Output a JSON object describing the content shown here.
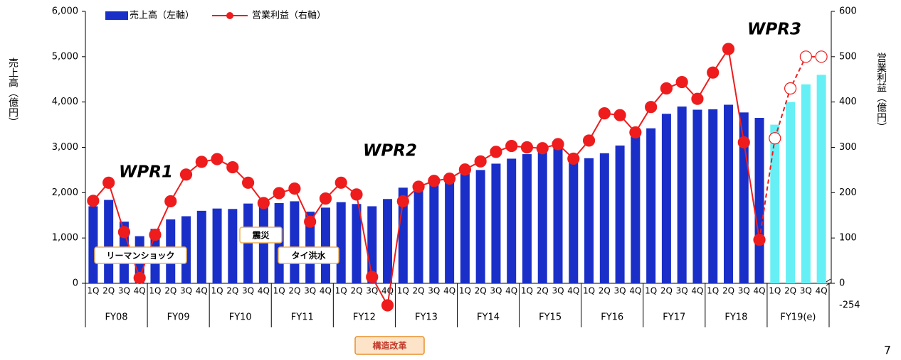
{
  "chart_data": {
    "type": "bar-line",
    "categories": [
      "1Q",
      "2Q",
      "3Q",
      "4Q",
      "1Q",
      "2Q",
      "3Q",
      "4Q",
      "1Q",
      "2Q",
      "3Q",
      "4Q",
      "1Q",
      "2Q",
      "3Q",
      "4Q",
      "1Q",
      "2Q",
      "3Q",
      "4Q",
      "1Q",
      "2Q",
      "3Q",
      "4Q",
      "1Q",
      "2Q",
      "3Q",
      "4Q",
      "1Q",
      "2Q",
      "3Q",
      "4Q",
      "1Q",
      "2Q",
      "3Q",
      "4Q",
      "1Q",
      "2Q",
      "3Q",
      "4Q",
      "1Q",
      "2Q",
      "3Q",
      "4Q",
      "1Q",
      "2Q",
      "3Q",
      "4Q"
    ],
    "groups": [
      "FY08",
      "FY09",
      "FY10",
      "FY11",
      "FY12",
      "FY13",
      "FY14",
      "FY15",
      "FY16",
      "FY17",
      "FY18",
      "FY19(e)"
    ],
    "series": [
      {
        "name": "売上高（左軸）",
        "color": "#1a2fc8",
        "values": [
          1700,
          1840,
          1360,
          1040,
          1200,
          1410,
          1480,
          1600,
          1650,
          1640,
          1760,
          1760,
          1770,
          1810,
          1580,
          1670,
          1790,
          1750,
          1700,
          1860,
          2110,
          2140,
          2210,
          2270,
          2420,
          2500,
          2640,
          2750,
          2850,
          2920,
          3020,
          2780,
          2760,
          2870,
          3040,
          3240,
          3420,
          3740,
          3900,
          3830,
          3840,
          3940,
          3770,
          3650,
          null,
          null,
          null,
          null
        ]
      },
      {
        "color": "#66f0f5",
        "values": [
          null,
          null,
          null,
          null,
          null,
          null,
          null,
          null,
          null,
          null,
          null,
          null,
          null,
          null,
          null,
          null,
          null,
          null,
          null,
          null,
          null,
          null,
          null,
          null,
          null,
          null,
          null,
          null,
          null,
          null,
          null,
          null,
          null,
          null,
          null,
          null,
          null,
          null,
          null,
          null,
          null,
          null,
          null,
          null,
          3500,
          4000,
          4390,
          4600
        ]
      },
      {
        "name": "営業利益（右軸）",
        "color": "#ee1c1c",
        "axis": "y2",
        "values": [
          182,
          222,
          113,
          12,
          107,
          181,
          240,
          268,
          274,
          256,
          222,
          177,
          199,
          209,
          136,
          187,
          222,
          196,
          14,
          -254,
          181,
          213,
          226,
          231,
          251,
          269,
          290,
          303,
          300,
          298,
          307,
          275,
          315,
          375,
          371,
          333,
          389,
          430,
          444,
          407,
          465,
          517,
          311,
          96,
          null,
          null,
          null,
          null
        ]
      },
      {
        "color": "#ee1c1c",
        "axis": "y2",
        "dashed": true,
        "values": [
          null,
          null,
          null,
          null,
          null,
          null,
          null,
          null,
          null,
          null,
          null,
          null,
          null,
          null,
          null,
          null,
          null,
          null,
          null,
          null,
          null,
          null,
          null,
          null,
          null,
          null,
          null,
          null,
          null,
          null,
          null,
          null,
          null,
          null,
          null,
          null,
          null,
          null,
          null,
          null,
          null,
          null,
          null,
          null,
          320,
          430,
          500,
          500
        ]
      }
    ],
    "ylabel": "売上高（億円）",
    "y2label": "営業利益（億円）",
    "ylim": [
      0,
      6000
    ],
    "yticks": [
      0,
      {
        "value": 1000,
        "label": "1,000"
      },
      {
        "value": 2000,
        "label": "2,000"
      },
      {
        "value": 3000,
        "label": "3,000"
      },
      {
        "value": 4000,
        "label": "4,000"
      },
      {
        "value": 5000,
        "label": "5,000"
      },
      {
        "value": 6000,
        "label": "6,000"
      }
    ],
    "y2lim": [
      -254,
      600
    ],
    "y2ticks": [
      -254,
      0,
      100,
      200,
      300,
      400,
      500,
      600
    ],
    "annotations": [
      "WPR1",
      "WPR2",
      "WPR3",
      "リーマンショック",
      "震災",
      "タイ洪水",
      "構造改革"
    ],
    "page_number": "7"
  }
}
